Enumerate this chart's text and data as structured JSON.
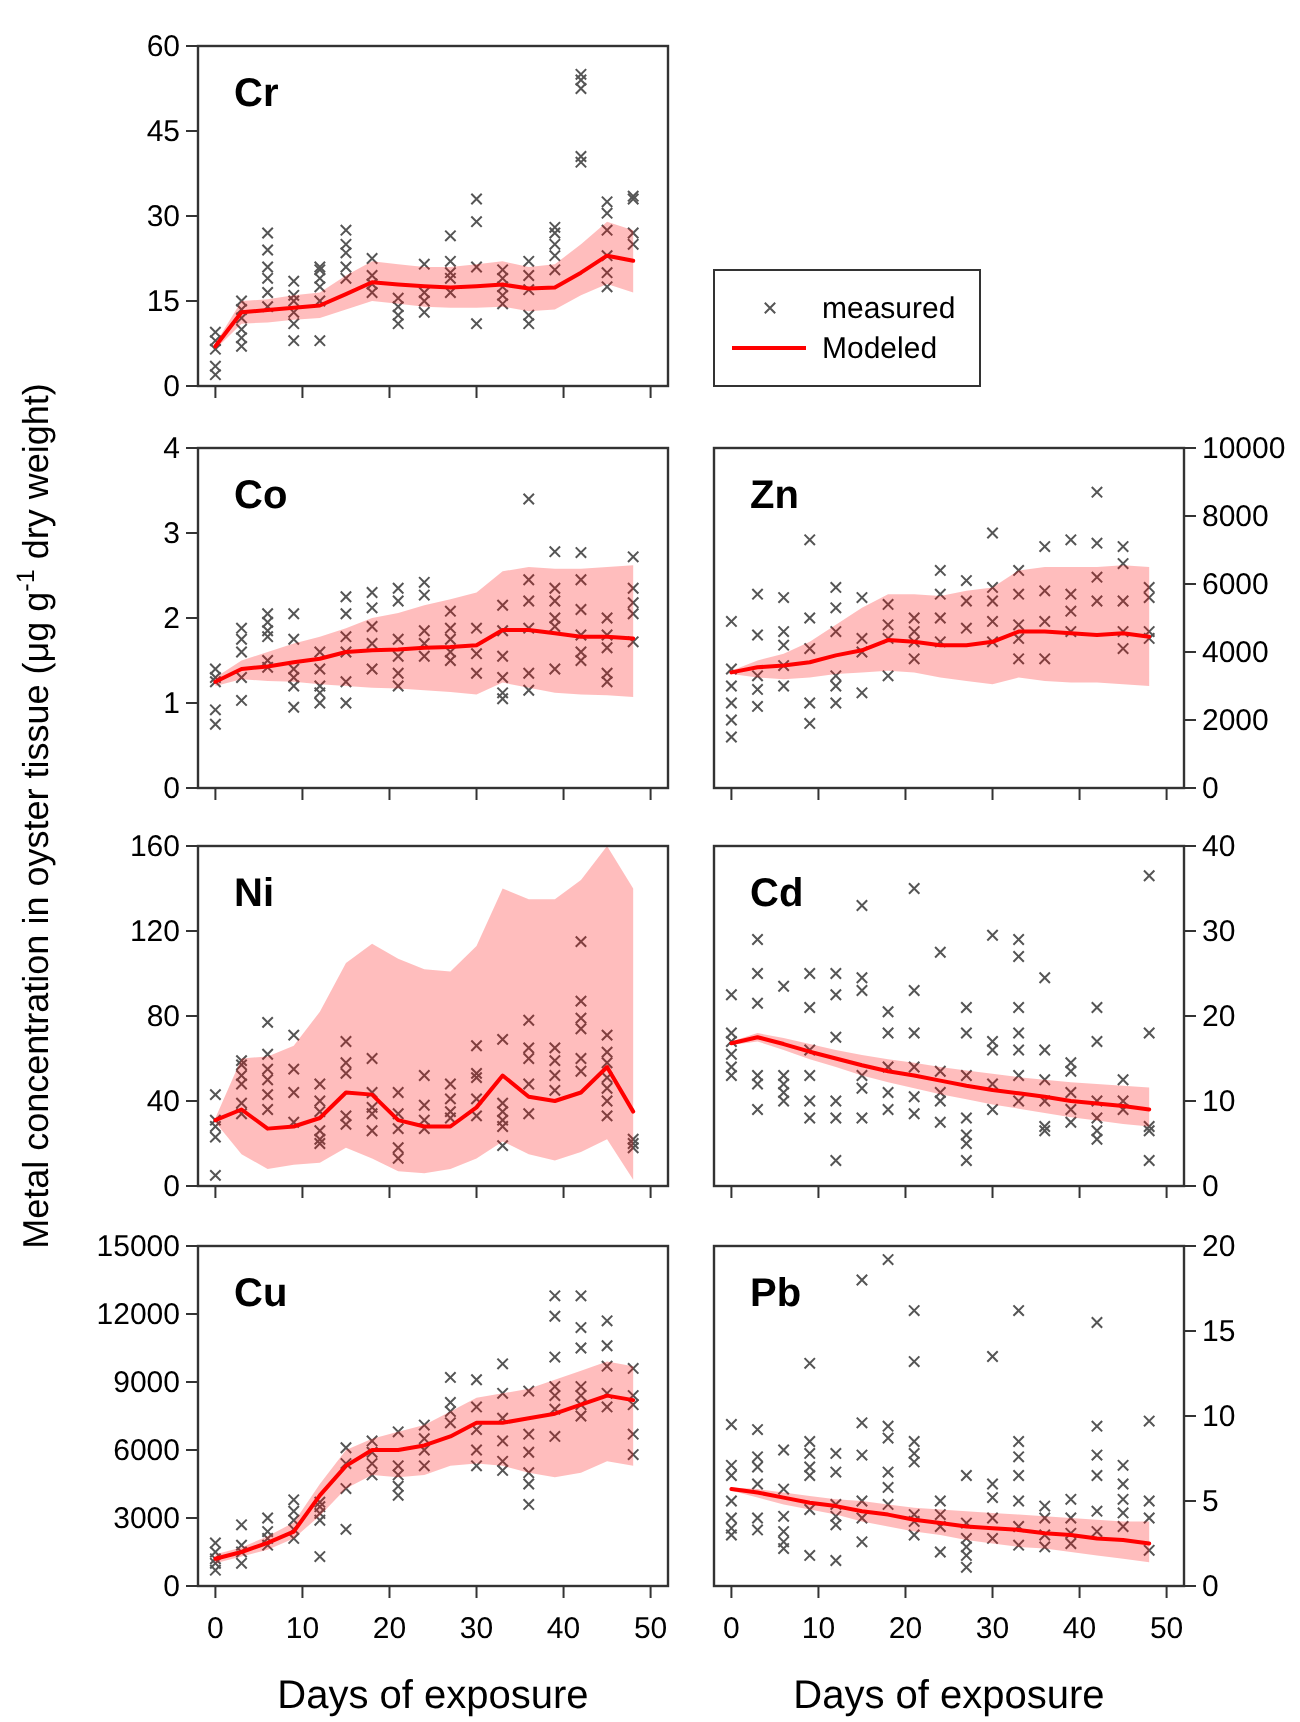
{
  "chart_data": [
    {
      "type": "line",
      "title": "Cr",
      "xlim": [
        -2,
        52
      ],
      "xticks": [
        0,
        10,
        20,
        30,
        40,
        50
      ],
      "ylim": [
        0,
        60
      ],
      "yticks": [
        0,
        15,
        30,
        45,
        60
      ],
      "tick_labels": "y",
      "legend": "right",
      "series": [
        {
          "type": "scatter",
          "name": "measured",
          "color": "#555555",
          "marker": "cross",
          "x": [
            0,
            0,
            0,
            0,
            0,
            3,
            3,
            3,
            3,
            3,
            3,
            6,
            6,
            6,
            6,
            6,
            6,
            9,
            9,
            9,
            9,
            9,
            9,
            12,
            12,
            12,
            12,
            12,
            12,
            15,
            15,
            15,
            15,
            15,
            18,
            18,
            18,
            18,
            21,
            21,
            21,
            21,
            24,
            24,
            24,
            24,
            27,
            27,
            27,
            27,
            27,
            30,
            30,
            30,
            30,
            33,
            33,
            33,
            33,
            33,
            36,
            36,
            36,
            36,
            36,
            39,
            39,
            39,
            39,
            39,
            42,
            42,
            42,
            42,
            42,
            45,
            45,
            45,
            45,
            45,
            45,
            48,
            48,
            48,
            48
          ],
          "values": [
            2,
            3.5,
            6.5,
            8,
            9.5,
            7,
            8.5,
            10,
            12,
            13.5,
            15,
            14,
            16.5,
            19,
            21,
            24,
            27,
            8,
            11,
            13,
            15,
            16,
            18.5,
            8,
            15,
            17.5,
            19,
            20.5,
            21,
            19,
            21,
            23.5,
            25,
            27.5,
            16.5,
            18,
            19.5,
            22.5,
            11,
            12.5,
            14,
            15.5,
            13,
            15,
            16.5,
            21.5,
            16.5,
            19,
            20,
            22,
            26.5,
            11,
            21,
            29,
            33,
            14.5,
            16,
            17.5,
            19,
            20.5,
            11,
            12.5,
            17,
            19.5,
            22,
            20.5,
            23,
            25,
            27,
            28,
            39.5,
            40.5,
            52.5,
            54,
            55,
            17.5,
            20,
            23,
            27.5,
            30.5,
            32.5,
            25,
            27,
            33,
            33.5
          ]
        },
        {
          "type": "line",
          "name": "Modeled",
          "color": "#ff0000",
          "x": [
            0,
            3,
            6,
            9,
            12,
            15,
            18,
            21,
            24,
            27,
            30,
            33,
            36,
            39,
            42,
            45,
            48
          ],
          "values": [
            7,
            13,
            13.4,
            13.8,
            14.2,
            16.2,
            18.3,
            17.9,
            17.6,
            17.4,
            17.6,
            17.9,
            17.2,
            17.4,
            20,
            23,
            22.1
          ],
          "lower": [
            6.5,
            11,
            11.2,
            11.7,
            12,
            13.5,
            15,
            14.5,
            14,
            13.8,
            13.8,
            14,
            13.2,
            13.5,
            16,
            18,
            16.5
          ],
          "upper": [
            7.5,
            15,
            15.3,
            16,
            16.5,
            19.5,
            22,
            21.5,
            21,
            21,
            21.5,
            22,
            21,
            21.5,
            25,
            29,
            27.5
          ]
        }
      ]
    },
    {
      "type": "line",
      "title": "Co",
      "xlim": [
        -2,
        52
      ],
      "xticks": [
        0,
        10,
        20,
        30,
        40,
        50
      ],
      "ylim": [
        0,
        4
      ],
      "yticks": [
        0,
        1,
        2,
        3,
        4
      ],
      "tick_labels": "y",
      "series": [
        {
          "type": "scatter",
          "color": "#555555",
          "marker": "cross",
          "x": [
            0,
            0,
            0,
            0,
            0,
            3,
            3,
            3,
            3,
            3,
            6,
            6,
            6,
            6,
            6,
            6,
            9,
            9,
            9,
            9,
            9,
            9,
            12,
            12,
            12,
            12,
            12,
            15,
            15,
            15,
            15,
            15,
            15,
            18,
            18,
            18,
            18,
            18,
            21,
            21,
            21,
            21,
            21,
            21,
            24,
            24,
            24,
            24,
            24,
            27,
            27,
            27,
            27,
            27,
            30,
            30,
            30,
            33,
            33,
            33,
            33,
            33,
            33,
            36,
            36,
            36,
            36,
            36,
            36,
            39,
            39,
            39,
            39,
            39,
            39,
            42,
            42,
            42,
            42,
            42,
            42,
            45,
            45,
            45,
            45,
            45,
            48,
            48,
            48,
            48,
            48
          ],
          "values": [
            0.75,
            0.92,
            1.25,
            1.3,
            1.4,
            1.03,
            1.3,
            1.6,
            1.75,
            1.88,
            1.42,
            1.5,
            1.78,
            1.85,
            1.95,
            2.05,
            0.95,
            1.2,
            1.3,
            1.4,
            1.75,
            2.05,
            1,
            1.12,
            1.2,
            1.4,
            1.6,
            1,
            1.25,
            1.6,
            1.78,
            2.05,
            2.25,
            1.4,
            1.7,
            1.9,
            2.12,
            2.3,
            1.2,
            1.35,
            1.55,
            1.75,
            2.2,
            2.35,
            1.55,
            1.7,
            1.85,
            2.27,
            2.42,
            1.5,
            1.6,
            1.75,
            1.88,
            2.08,
            1.35,
            1.58,
            1.88,
            1.05,
            1.12,
            1.3,
            1.55,
            1.85,
            2.15,
            1.15,
            1.35,
            1.88,
            2.2,
            2.45,
            3.4,
            1.4,
            1.9,
            2,
            2.2,
            2.35,
            2.78,
            1.5,
            1.6,
            1.8,
            2.1,
            2.45,
            2.77,
            1.25,
            1.35,
            1.65,
            1.8,
            2,
            1.72,
            2.05,
            2.18,
            2.35,
            2.72
          ]
        },
        {
          "type": "line",
          "color": "#ff0000",
          "x": [
            0,
            3,
            6,
            9,
            12,
            15,
            18,
            21,
            24,
            27,
            30,
            33,
            36,
            39,
            42,
            45,
            48
          ],
          "values": [
            1.25,
            1.4,
            1.43,
            1.48,
            1.52,
            1.6,
            1.62,
            1.63,
            1.65,
            1.66,
            1.68,
            1.86,
            1.86,
            1.82,
            1.78,
            1.78,
            1.76
          ],
          "lower": [
            1.2,
            1.28,
            1.26,
            1.25,
            1.22,
            1.2,
            1.18,
            1.17,
            1.15,
            1.13,
            1.1,
            1.24,
            1.18,
            1.12,
            1.1,
            1.09,
            1.07
          ],
          "upper": [
            1.3,
            1.5,
            1.6,
            1.7,
            1.78,
            1.88,
            2,
            2.06,
            2.15,
            2.22,
            2.3,
            2.55,
            2.6,
            2.58,
            2.58,
            2.6,
            2.62
          ]
        }
      ]
    },
    {
      "type": "line",
      "title": "Zn",
      "xlim": [
        -2,
        52
      ],
      "xticks": [
        0,
        10,
        20,
        30,
        40,
        50
      ],
      "ylim": [
        0,
        10000
      ],
      "yticks": [
        0,
        2000,
        4000,
        6000,
        8000,
        10000
      ],
      "tick_labels": "y",
      "series": [
        {
          "type": "scatter",
          "color": "#555555",
          "marker": "cross",
          "x": [
            0,
            0,
            0,
            0,
            0,
            0,
            3,
            3,
            3,
            3,
            3,
            6,
            6,
            6,
            6,
            6,
            9,
            9,
            9,
            9,
            9,
            12,
            12,
            12,
            12,
            12,
            12,
            15,
            15,
            15,
            15,
            18,
            18,
            18,
            18,
            21,
            21,
            21,
            21,
            24,
            24,
            24,
            24,
            27,
            27,
            27,
            30,
            30,
            30,
            30,
            30,
            33,
            33,
            33,
            33,
            33,
            36,
            36,
            36,
            36,
            39,
            39,
            39,
            39,
            42,
            42,
            42,
            42,
            45,
            45,
            45,
            45,
            45,
            48,
            48,
            48,
            48
          ],
          "values": [
            1500,
            2000,
            2500,
            3000,
            3500,
            4900,
            2400,
            2900,
            3300,
            4500,
            5700,
            3000,
            3600,
            4200,
            4600,
            5600,
            1900,
            2500,
            4100,
            5000,
            7300,
            2500,
            3000,
            3300,
            4600,
            5300,
            5900,
            2800,
            4000,
            4400,
            5600,
            3300,
            4400,
            4800,
            5400,
            3800,
            4300,
            4600,
            5000,
            4300,
            5000,
            5700,
            6400,
            4700,
            5500,
            6100,
            4300,
            4900,
            5500,
            5900,
            7500,
            3800,
            4400,
            4800,
            5700,
            6400,
            3800,
            4900,
            5800,
            7100,
            4600,
            5200,
            5700,
            7300,
            5500,
            6200,
            7200,
            8700,
            4100,
            4600,
            5500,
            6600,
            7100,
            4400,
            4600,
            5600,
            5900
          ]
        },
        {
          "type": "line",
          "color": "#ff0000",
          "x": [
            0,
            3,
            6,
            9,
            12,
            15,
            18,
            21,
            24,
            27,
            30,
            33,
            36,
            39,
            42,
            45,
            48
          ],
          "values": [
            3400,
            3550,
            3600,
            3700,
            3900,
            4050,
            4350,
            4300,
            4200,
            4200,
            4300,
            4600,
            4600,
            4550,
            4500,
            4550,
            4450
          ],
          "lower": [
            3350,
            3250,
            3200,
            3250,
            3350,
            3400,
            3450,
            3400,
            3250,
            3150,
            3050,
            3250,
            3150,
            3100,
            3100,
            3050,
            3000
          ],
          "upper": [
            3450,
            3750,
            3950,
            4300,
            4800,
            5300,
            5700,
            5700,
            5650,
            5800,
            5900,
            6400,
            6500,
            6500,
            6500,
            6550,
            6500
          ]
        }
      ]
    },
    {
      "type": "line",
      "title": "Ni",
      "ylabel": "Metal concentration in oyster tissue (μg g$^{-1}$ dry weight)",
      "xlim": [
        -2,
        52
      ],
      "xticks": [
        0,
        10,
        20,
        30,
        40,
        50
      ],
      "ylim": [
        0,
        160
      ],
      "yticks": [
        0,
        40,
        80,
        120,
        160
      ],
      "tick_labels": "y",
      "series": [
        {
          "type": "scatter",
          "color": "#555555",
          "marker": "cross",
          "x": [
            0,
            0,
            0,
            0,
            0,
            3,
            3,
            3,
            3,
            3,
            3,
            6,
            6,
            6,
            6,
            6,
            6,
            9,
            9,
            9,
            9,
            12,
            12,
            12,
            12,
            12,
            12,
            15,
            15,
            15,
            15,
            15,
            18,
            18,
            18,
            18,
            18,
            21,
            21,
            21,
            21,
            21,
            24,
            24,
            24,
            24,
            27,
            27,
            27,
            27,
            30,
            30,
            30,
            30,
            30,
            33,
            33,
            33,
            33,
            33,
            33,
            36,
            36,
            36,
            36,
            36,
            39,
            39,
            39,
            39,
            42,
            42,
            42,
            42,
            42,
            42,
            45,
            45,
            45,
            45,
            45,
            45,
            45,
            48,
            48,
            48
          ],
          "values": [
            5,
            23,
            28,
            31,
            43,
            34,
            39,
            48,
            52,
            57,
            59,
            36,
            43,
            50,
            55,
            62,
            77,
            30,
            44,
            55,
            71,
            20,
            22,
            26,
            35,
            40,
            48,
            29,
            33,
            53,
            58,
            68,
            26,
            34,
            37,
            44,
            60,
            13,
            18,
            27,
            34,
            44,
            27,
            31,
            38,
            52,
            32,
            35,
            41,
            48,
            33,
            41,
            51,
            53,
            66,
            19,
            28,
            31,
            35,
            39,
            69,
            34,
            48,
            60,
            65,
            78,
            45,
            52,
            59,
            65,
            54,
            60,
            74,
            79,
            87,
            115,
            33,
            40,
            46,
            51,
            58,
            63,
            71,
            18,
            20,
            22
          ]
        },
        {
          "type": "line",
          "color": "#ff0000",
          "x": [
            0,
            3,
            6,
            9,
            12,
            15,
            18,
            21,
            24,
            27,
            30,
            33,
            36,
            39,
            42,
            45,
            48
          ],
          "values": [
            31,
            36,
            27,
            28,
            32,
            44,
            43,
            31,
            28,
            28,
            37,
            52,
            42,
            40,
            44,
            56,
            35
          ],
          "lower": [
            30,
            15,
            8,
            10,
            11,
            18,
            13,
            7,
            6,
            8,
            13,
            21,
            15,
            12,
            16,
            22,
            3
          ],
          "upper": [
            32,
            60,
            61,
            66,
            82,
            105,
            114,
            107,
            102,
            101,
            113,
            140,
            135,
            135,
            144,
            160,
            140
          ]
        }
      ]
    },
    {
      "type": "line",
      "title": "Cd",
      "xlim": [
        -2,
        52
      ],
      "xticks": [
        0,
        10,
        20,
        30,
        40,
        50
      ],
      "ylim": [
        0,
        40
      ],
      "yticks": [
        0,
        10,
        20,
        30,
        40
      ],
      "tick_labels": "y",
      "series": [
        {
          "type": "scatter",
          "color": "#555555",
          "marker": "cross",
          "x": [
            0,
            0,
            0,
            0,
            0,
            0,
            3,
            3,
            3,
            3,
            3,
            3,
            6,
            6,
            6,
            6,
            6,
            9,
            9,
            9,
            9,
            9,
            9,
            12,
            12,
            12,
            12,
            12,
            12,
            15,
            15,
            15,
            15,
            15,
            15,
            18,
            18,
            18,
            18,
            18,
            21,
            21,
            21,
            21,
            21,
            21,
            24,
            24,
            24,
            24,
            24,
            27,
            27,
            27,
            27,
            27,
            27,
            27,
            30,
            30,
            30,
            30,
            30,
            33,
            33,
            33,
            33,
            33,
            33,
            33,
            36,
            36,
            36,
            36,
            36,
            36,
            39,
            39,
            39,
            39,
            39,
            42,
            42,
            42,
            42,
            42,
            42,
            45,
            45,
            45,
            48,
            48,
            48,
            48,
            48
          ],
          "values": [
            13,
            14,
            15.5,
            17,
            18,
            22.5,
            9,
            12,
            13,
            21.5,
            25,
            29,
            10,
            11,
            12,
            13,
            23.5,
            8,
            10,
            13,
            16,
            21,
            25,
            3,
            8,
            10,
            17.5,
            22.5,
            25,
            8,
            11.5,
            13,
            23,
            24.5,
            33,
            9,
            11,
            14,
            18,
            20.5,
            8.5,
            10.5,
            14,
            18,
            23,
            35,
            7.5,
            10,
            11,
            13.5,
            27.5,
            3,
            5,
            6,
            8,
            13,
            18,
            21,
            9,
            12,
            16,
            17,
            29.5,
            10,
            13,
            16,
            18,
            21,
            27,
            29,
            6.5,
            7,
            10,
            12.5,
            16,
            24.5,
            7.5,
            9,
            11,
            13.5,
            14.5,
            5.5,
            6.5,
            8,
            10,
            17,
            21,
            9,
            10,
            12.5,
            3,
            6.5,
            7,
            18,
            36.5
          ]
        },
        {
          "type": "line",
          "color": "#ff0000",
          "x": [
            0,
            3,
            6,
            9,
            12,
            15,
            18,
            21,
            24,
            27,
            30,
            33,
            36,
            39,
            42,
            45,
            48
          ],
          "values": [
            16.8,
            17.5,
            16.7,
            15.8,
            15,
            14.2,
            13.5,
            13,
            12.4,
            11.8,
            11.3,
            10.9,
            10.5,
            10,
            9.7,
            9.4,
            9
          ],
          "lower": [
            16.6,
            17,
            16,
            14.9,
            14,
            13,
            12.2,
            11.5,
            10.8,
            10.2,
            9.6,
            9.1,
            8.6,
            8.1,
            7.7,
            7.3,
            7
          ],
          "upper": [
            17,
            18,
            17.4,
            16.7,
            16,
            15.4,
            14.9,
            14.5,
            14,
            13.6,
            13.2,
            12.8,
            12.5,
            12.2,
            12,
            11.8,
            11.6
          ]
        }
      ]
    },
    {
      "type": "line",
      "title": "Cu",
      "xlabel": "Days of exposure",
      "xlim": [
        -2,
        52
      ],
      "xticks": [
        0,
        10,
        20,
        30,
        40,
        50
      ],
      "ylim": [
        0,
        15000
      ],
      "yticks": [
        0,
        3000,
        6000,
        9000,
        12000,
        15000
      ],
      "series": [
        {
          "type": "scatter",
          "color": "#555555",
          "marker": "cross",
          "x": [
            0,
            0,
            0,
            0,
            0,
            3,
            3,
            3,
            3,
            6,
            6,
            6,
            6,
            9,
            9,
            9,
            9,
            9,
            12,
            12,
            12,
            12,
            12,
            15,
            15,
            15,
            15,
            18,
            18,
            18,
            18,
            21,
            21,
            21,
            21,
            21,
            24,
            24,
            24,
            24,
            27,
            27,
            27,
            27,
            30,
            30,
            30,
            30,
            30,
            33,
            33,
            33,
            33,
            33,
            33,
            36,
            36,
            36,
            36,
            36,
            36,
            39,
            39,
            39,
            39,
            39,
            39,
            39,
            42,
            42,
            42,
            42,
            42,
            42,
            42,
            45,
            45,
            45,
            45,
            45,
            48,
            48,
            48,
            48,
            48
          ],
          "values": [
            700,
            1000,
            1200,
            1500,
            1900,
            1000,
            1500,
            1800,
            2700,
            1800,
            2100,
            2400,
            3000,
            2100,
            2500,
            2900,
            3300,
            3800,
            1300,
            2900,
            3200,
            3500,
            3700,
            2500,
            4300,
            5400,
            6100,
            4900,
            5400,
            5900,
            6400,
            4000,
            4400,
            4900,
            5300,
            6800,
            5300,
            6000,
            6500,
            7100,
            7200,
            7700,
            8100,
            9200,
            5300,
            6000,
            6900,
            7900,
            9100,
            5100,
            5500,
            6400,
            7400,
            8500,
            9800,
            3600,
            4500,
            5000,
            5900,
            6700,
            8600,
            6600,
            7800,
            8400,
            8800,
            10100,
            11900,
            12800,
            7500,
            8000,
            8400,
            8800,
            10500,
            11400,
            12800,
            7900,
            8500,
            9700,
            10600,
            11700,
            5800,
            6700,
            8000,
            8400,
            9600
          ]
        },
        {
          "type": "line",
          "color": "#ff0000",
          "x": [
            0,
            3,
            6,
            9,
            12,
            15,
            18,
            21,
            24,
            27,
            30,
            33,
            36,
            39,
            42,
            45,
            48
          ],
          "values": [
            1200,
            1500,
            1900,
            2400,
            4000,
            5300,
            6000,
            6000,
            6200,
            6600,
            7200,
            7200,
            7400,
            7600,
            8000,
            8400,
            8200
          ],
          "lower": [
            1000,
            1300,
            1600,
            2100,
            3100,
            4300,
            4900,
            4800,
            4900,
            5300,
            5400,
            5300,
            5000,
            4800,
            5000,
            5500,
            5300
          ],
          "upper": [
            1400,
            1700,
            2200,
            2800,
            4500,
            6000,
            6500,
            6800,
            7100,
            7700,
            8300,
            8500,
            8700,
            9100,
            9500,
            9900,
            9700
          ]
        }
      ]
    },
    {
      "type": "line",
      "title": "Pb",
      "xlabel": "Days of exposure",
      "xlim": [
        -2,
        52
      ],
      "xticks": [
        0,
        10,
        20,
        30,
        40,
        50
      ],
      "ylim": [
        0,
        20
      ],
      "yticks": [
        0,
        5,
        10,
        15,
        20
      ],
      "series": [
        {
          "type": "scatter",
          "color": "#555555",
          "marker": "cross",
          "x": [
            0,
            0,
            0,
            0,
            0,
            0,
            0,
            3,
            3,
            3,
            3,
            3,
            3,
            6,
            6,
            6,
            6,
            6,
            6,
            9,
            9,
            9,
            9,
            9,
            9,
            9,
            12,
            12,
            12,
            12,
            12,
            12,
            15,
            15,
            15,
            15,
            15,
            15,
            18,
            18,
            18,
            18,
            18,
            18,
            21,
            21,
            21,
            21,
            21,
            21,
            21,
            21,
            24,
            24,
            24,
            24,
            27,
            27,
            27,
            27,
            27,
            27,
            30,
            30,
            30,
            30,
            30,
            33,
            33,
            33,
            33,
            33,
            33,
            33,
            36,
            36,
            36,
            36,
            39,
            39,
            39,
            39,
            42,
            42,
            42,
            42,
            42,
            42,
            45,
            45,
            45,
            45,
            45,
            48,
            48,
            48,
            48
          ],
          "values": [
            3,
            3.4,
            4,
            5,
            6.5,
            7.1,
            9.5,
            3.3,
            4,
            6,
            7,
            7.6,
            9.2,
            2.2,
            2.6,
            3.2,
            4.1,
            5.7,
            8,
            1.8,
            4.5,
            6.5,
            7,
            7.8,
            8.5,
            13.1,
            1.5,
            3.6,
            4.1,
            4.8,
            6.7,
            7.8,
            2.6,
            4,
            5,
            7.7,
            9.6,
            18,
            4.8,
            5.8,
            6.7,
            8.7,
            9.4,
            19.2,
            3,
            3.8,
            4.2,
            7.3,
            7.8,
            8.5,
            13.2,
            16.2,
            2,
            3.5,
            4.2,
            5,
            1.1,
            1.8,
            2.3,
            2.8,
            3.7,
            6.5,
            2.8,
            4,
            5.2,
            6,
            13.5,
            2.4,
            3.5,
            5,
            6.5,
            7.6,
            8.5,
            16.2,
            2.3,
            3,
            4,
            4.7,
            2.5,
            3.1,
            4,
            5.1,
            3.2,
            4.4,
            6.5,
            7.7,
            9.4,
            15.5,
            3.5,
            4.3,
            5.1,
            6,
            7.1,
            2.1,
            4,
            5,
            9.7
          ]
        },
        {
          "type": "line",
          "color": "#ff0000",
          "x": [
            0,
            3,
            6,
            9,
            12,
            15,
            18,
            21,
            24,
            27,
            30,
            33,
            36,
            39,
            42,
            45,
            48
          ],
          "values": [
            5.7,
            5.5,
            5.2,
            4.9,
            4.7,
            4.4,
            4.2,
            3.9,
            3.7,
            3.5,
            3.4,
            3.3,
            3.1,
            3,
            2.8,
            2.7,
            2.5
          ],
          "lower": [
            5.6,
            5.2,
            4.8,
            4.5,
            4.2,
            3.8,
            3.5,
            3.2,
            3,
            2.7,
            2.5,
            2.3,
            2.2,
            2,
            1.8,
            1.6,
            1.4
          ],
          "upper": [
            5.8,
            5.7,
            5.5,
            5.3,
            5.1,
            5,
            4.8,
            4.6,
            4.5,
            4.4,
            4.3,
            4.2,
            4.1,
            4,
            3.9,
            3.8,
            3.8
          ]
        }
      ]
    }
  ]
}
